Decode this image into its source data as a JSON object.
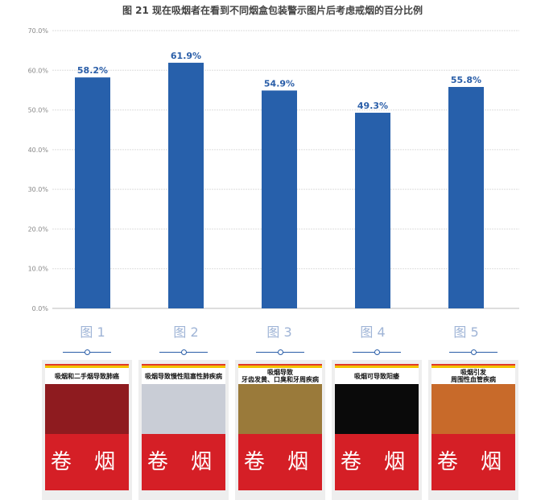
{
  "chart_data": {
    "type": "bar",
    "title": "图 21  现在吸烟者在看到不同烟盒包装警示图片后考虑戒烟的百分比例",
    "categories": [
      "图 1",
      "图 2",
      "图 3",
      "图 4",
      "图 5"
    ],
    "values": [
      58.2,
      61.9,
      54.9,
      49.3,
      55.8
    ],
    "data_labels": [
      "58.2%",
      "61.9%",
      "54.9%",
      "49.3%",
      "55.8%"
    ],
    "yticks": [
      "0.0%",
      "10.0%",
      "20.0%",
      "30.0%",
      "40.0%",
      "50.0%",
      "60.0%",
      "70.0%"
    ],
    "ylim": [
      0,
      70
    ],
    "grid": true,
    "bar_color": "#2760ab",
    "label_color": "#2a5ea8",
    "category_color": "#9fb4d6"
  },
  "cards": [
    {
      "caption": "吸烟和二手烟导致肺癌",
      "brand": "卷 烟",
      "bg": "#8e1b1f"
    },
    {
      "caption": "吸烟导致慢性阻塞性肺疾病",
      "brand": "卷 烟",
      "bg": "#c9cdd6"
    },
    {
      "caption": "吸烟导致\n牙齿发黄、口臭和牙周疾病",
      "brand": "卷 烟",
      "bg": "#9a7a3a"
    },
    {
      "caption": "吸烟可导致阳痿",
      "brand": "卷 烟",
      "bg": "#0a0a0a"
    },
    {
      "caption": "吸烟引发\n周围性血管疾病",
      "brand": "卷 烟",
      "bg": "#c86a2a"
    }
  ]
}
